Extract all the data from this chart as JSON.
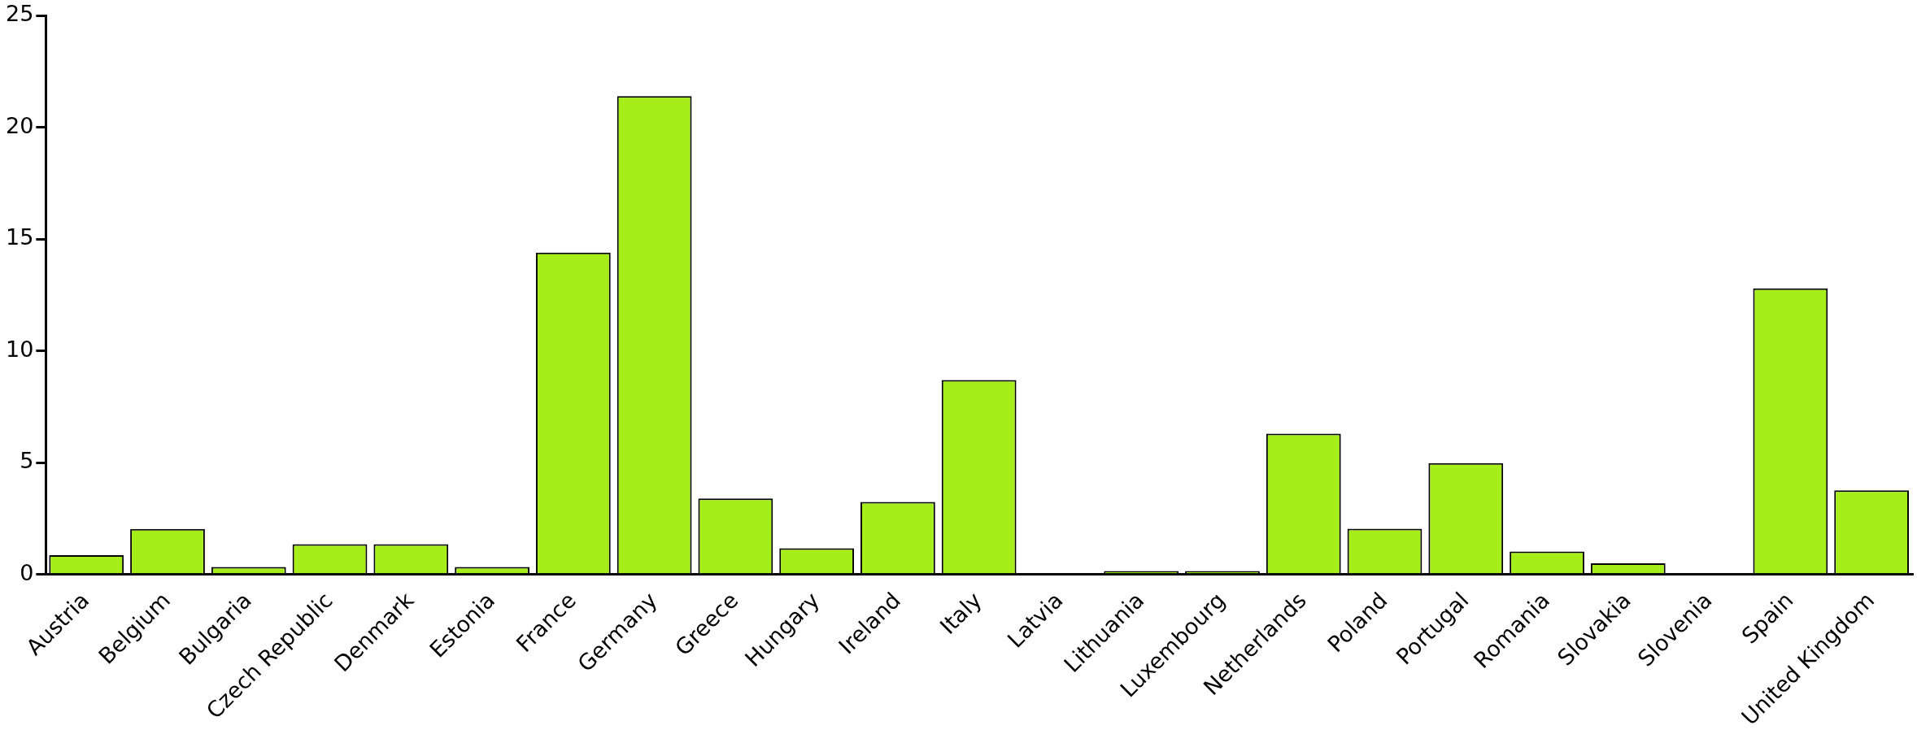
{
  "chart_data": {
    "type": "bar",
    "categories": [
      "Austria",
      "Belgium",
      "Bulgaria",
      "Czech Republic",
      "Denmark",
      "Estonia",
      "France",
      "Germany",
      "Greece",
      "Hungary",
      "Ireland",
      "Italy",
      "Latvia",
      "Lithuania",
      "Luxembourg",
      "Netherlands",
      "Poland",
      "Portugal",
      "Romania",
      "Slovakia",
      "Slovenia",
      "Spain",
      "United Kingdom"
    ],
    "values": [
      0.87,
      2.04,
      0.34,
      1.36,
      1.36,
      0.34,
      14.4,
      21.4,
      3.4,
      1.18,
      3.25,
      8.7,
      0,
      0.16,
      0.16,
      6.3,
      2.05,
      4.98,
      1.03,
      0.5,
      0,
      12.8,
      3.77
    ],
    "color": "#a6ee1a",
    "ylim": [
      0,
      25
    ],
    "yticks": [
      0,
      5,
      10,
      15,
      20,
      25
    ],
    "grid": false,
    "legend": false
  }
}
